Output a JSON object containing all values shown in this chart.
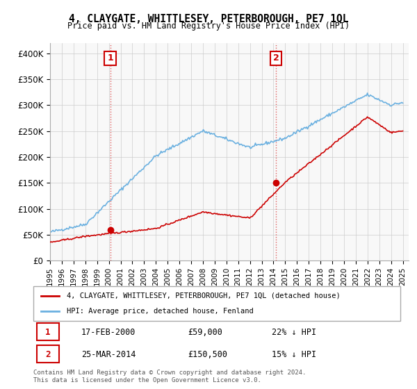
{
  "title": "4, CLAYGATE, WHITTLESEY, PETERBOROUGH, PE7 1QL",
  "subtitle": "Price paid vs. HM Land Registry's House Price Index (HPI)",
  "hpi_label": "HPI: Average price, detached house, Fenland",
  "property_label": "4, CLAYGATE, WHITTLESEY, PETERBOROUGH, PE7 1QL (detached house)",
  "hpi_color": "#6ab0e0",
  "property_color": "#cc0000",
  "marker_color": "#cc0000",
  "vline_color": "#e06060",
  "annotation_box_color": "#cc0000",
  "background_color": "#ffffff",
  "grid_color": "#cccccc",
  "ylim": [
    0,
    420000
  ],
  "yticks": [
    0,
    50000,
    100000,
    150000,
    200000,
    250000,
    300000,
    350000,
    400000
  ],
  "ytick_labels": [
    "£0",
    "£50K",
    "£100K",
    "£150K",
    "£200K",
    "£250K",
    "£300K",
    "£350K",
    "£400K"
  ],
  "x_start_year": 1995,
  "x_end_year": 2025,
  "transaction1": {
    "date_num": 2000.12,
    "price": 59000,
    "label": "1",
    "date_str": "17-FEB-2000",
    "price_str": "£59,000",
    "pct_str": "22% ↓ HPI"
  },
  "transaction2": {
    "date_num": 2014.23,
    "price": 150500,
    "label": "2",
    "date_str": "25-MAR-2014",
    "price_str": "£150,500",
    "pct_str": "15% ↓ HPI"
  },
  "footer": "Contains HM Land Registry data © Crown copyright and database right 2024.\nThis data is licensed under the Open Government Licence v3.0.",
  "legend_table_rows": [
    {
      "num": "1",
      "date": "17-FEB-2000",
      "price": "£59,000",
      "pct": "22% ↓ HPI"
    },
    {
      "num": "2",
      "date": "25-MAR-2014",
      "price": "£150,500",
      "pct": "15% ↓ HPI"
    }
  ]
}
